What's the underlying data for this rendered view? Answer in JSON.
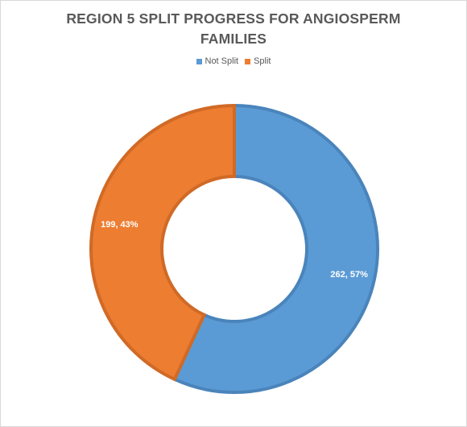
{
  "chart_data": {
    "type": "pie",
    "title": "REGION 5 SPLIT PROGRESS FOR ANGIOSPERM FAMILIES",
    "title_lines": [
      "REGION 5 SPLIT PROGRESS FOR ANGIOSPERM",
      "FAMILIES"
    ],
    "donut": true,
    "legend_position": "top",
    "series": [
      {
        "name": "Not Split",
        "value": 262,
        "percent": "57%",
        "label": "262, 57%",
        "color": "#5b9bd5",
        "stroke": "#4a84bb"
      },
      {
        "name": "Split",
        "value": 199,
        "percent": "43%",
        "label": "199, 43%",
        "color": "#ed7d31",
        "stroke": "#d06a26"
      }
    ]
  }
}
